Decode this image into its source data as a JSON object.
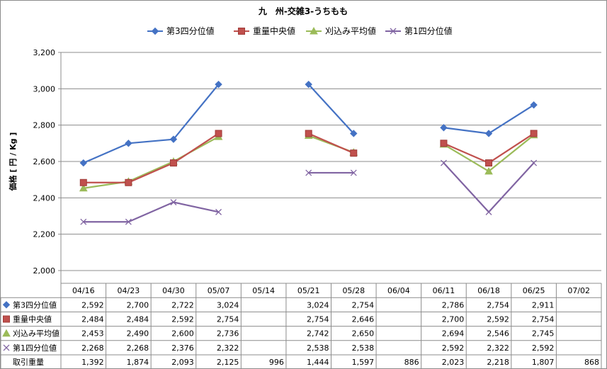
{
  "chart_data": {
    "type": "line",
    "title": "九　州-交雑3-うちもも",
    "ylabel": "価格 [ 円 / Kg ]",
    "ylim": [
      2000,
      3200
    ],
    "yticks": [
      "2,000",
      "2,200",
      "2,400",
      "2,600",
      "2,800",
      "3,000",
      "3,200"
    ],
    "ytick_values": [
      2000,
      2200,
      2400,
      2600,
      2800,
      3000,
      3200
    ],
    "grid": true,
    "legend_position": "top",
    "categories": [
      "04/16",
      "04/23",
      "04/30",
      "05/07",
      "05/14",
      "05/21",
      "05/28",
      "06/04",
      "06/11",
      "06/18",
      "06/25",
      "07/02"
    ],
    "series": [
      {
        "name": "第3四分位値",
        "color": "#4472c4",
        "marker": "diamond",
        "values": [
          2592,
          2700,
          2722,
          3024,
          null,
          3024,
          2754,
          null,
          2786,
          2754,
          2911,
          null
        ],
        "labels": [
          "2,592",
          "2,700",
          "2,722",
          "3,024",
          "",
          "3,024",
          "2,754",
          "",
          "2,786",
          "2,754",
          "2,911",
          ""
        ]
      },
      {
        "name": "重量中央値",
        "color": "#c0504d",
        "marker": "square",
        "values": [
          2484,
          2484,
          2592,
          2754,
          null,
          2754,
          2646,
          null,
          2700,
          2592,
          2754,
          null
        ],
        "labels": [
          "2,484",
          "2,484",
          "2,592",
          "2,754",
          "",
          "2,754",
          "2,646",
          "",
          "2,700",
          "2,592",
          "2,754",
          ""
        ]
      },
      {
        "name": "刈込み平均値",
        "color": "#9bbb59",
        "marker": "triangle",
        "values": [
          2453,
          2490,
          2600,
          2736,
          null,
          2742,
          2650,
          null,
          2694,
          2546,
          2745,
          null
        ],
        "labels": [
          "2,453",
          "2,490",
          "2,600",
          "2,736",
          "",
          "2,742",
          "2,650",
          "",
          "2,694",
          "2,546",
          "2,745",
          ""
        ]
      },
      {
        "name": "第1四分位値",
        "color": "#8064a2",
        "marker": "x",
        "values": [
          2268,
          2268,
          2376,
          2322,
          null,
          2538,
          2538,
          null,
          2592,
          2322,
          2592,
          null
        ],
        "labels": [
          "2,268",
          "2,268",
          "2,376",
          "2,322",
          "",
          "2,538",
          "2,538",
          "",
          "2,592",
          "2,322",
          "2,592",
          ""
        ]
      }
    ],
    "table_extra_row": {
      "name": "取引重量",
      "values": [
        1392,
        1874,
        2093,
        2125,
        996,
        1444,
        1597,
        886,
        2023,
        2218,
        1807,
        868
      ],
      "labels": [
        "1,392",
        "1,874",
        "2,093",
        "2,125",
        "996",
        "1,444",
        "1,597",
        "886",
        "2,023",
        "2,218",
        "1,807",
        "868"
      ]
    }
  }
}
